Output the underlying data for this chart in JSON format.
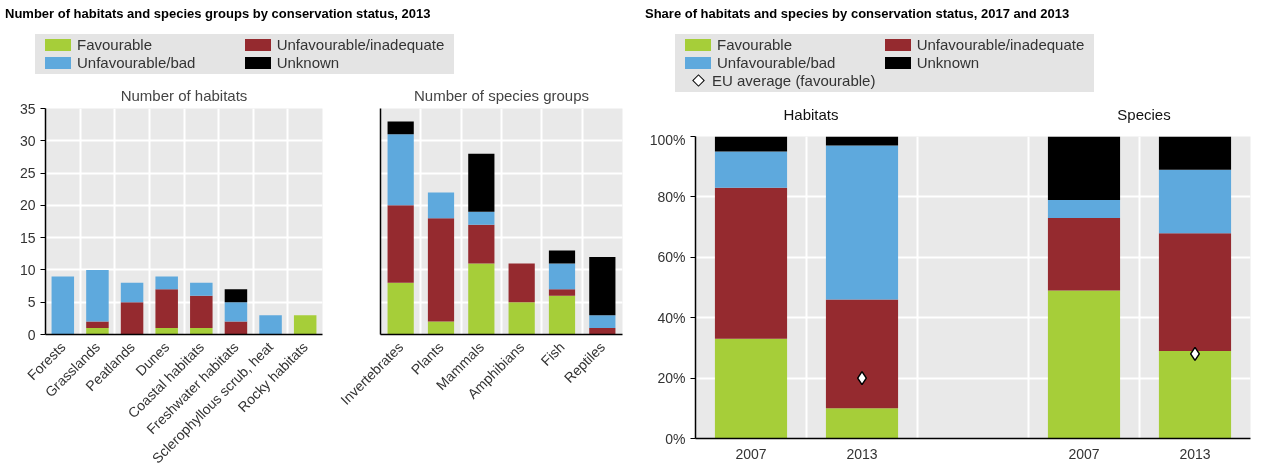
{
  "chart_data": [
    {
      "type": "bar",
      "stacked": true,
      "title": "Number of habitats and species groups by conservation status, 2013",
      "subtitle": "Number of habitats",
      "categories": [
        "Forests",
        "Grasslands",
        "Peatlands",
        "Dunes",
        "Coastal habitats",
        "Freshwater habitats",
        "Sclerophyllous scrub, heat",
        "Rocky habitats"
      ],
      "series": [
        {
          "name": "Favourable",
          "color": "#a6ce39",
          "values": [
            0,
            1,
            0,
            1,
            1,
            0,
            0,
            3
          ]
        },
        {
          "name": "Unfavourable/inadequate",
          "color": "#952a2f",
          "values": [
            0,
            1,
            5,
            6,
            5,
            2,
            0,
            0
          ]
        },
        {
          "name": "Unfavourable/bad",
          "color": "#5ea9dd",
          "values": [
            9,
            8,
            3,
            2,
            2,
            3,
            3,
            0
          ]
        },
        {
          "name": "Unknown",
          "color": "#000000",
          "values": [
            0,
            0,
            0,
            0,
            0,
            2,
            0,
            0
          ]
        }
      ],
      "ylim": [
        0,
        35
      ],
      "yticks": [
        0,
        5,
        10,
        15,
        20,
        25,
        30,
        35
      ],
      "grid": true,
      "legend": "top"
    },
    {
      "type": "bar",
      "stacked": true,
      "subtitle": "Number of species groups",
      "categories": [
        "Invertebrates",
        "Plants",
        "Mammals",
        "Amphibians",
        "Fish",
        "Reptiles"
      ],
      "series": [
        {
          "color": "#a6ce39",
          "values": [
            8,
            2,
            11,
            5,
            6,
            0
          ]
        },
        {
          "color": "#952a2f",
          "values": [
            12,
            16,
            6,
            6,
            1,
            1
          ]
        },
        {
          "color": "#5ea9dd",
          "values": [
            11,
            4,
            2,
            0,
            4,
            2
          ]
        },
        {
          "color": "#000000",
          "values": [
            2,
            0,
            9,
            0,
            2,
            9
          ]
        }
      ],
      "ylim": [
        0,
        35
      ],
      "yticks": [
        0,
        5,
        10,
        15,
        20,
        25,
        30,
        35
      ],
      "tick_labels": "x",
      "grid": true
    },
    {
      "type": "bar",
      "stacked": true,
      "title": "Share of habitats and species by conservation status, 2017 and 2013",
      "categories": [
        "2007",
        "2013",
        null,
        "2007",
        "2013"
      ],
      "series": [
        {
          "name": "Favourable",
          "color": "#a6ce39",
          "values": [
            33,
            10,
            null,
            49,
            29
          ]
        },
        {
          "name": "Unfavourable/inadequate",
          "color": "#952a2f",
          "values": [
            50,
            36,
            null,
            24,
            39
          ]
        },
        {
          "name": "Unfavourable/bad",
          "color": "#5ea9dd",
          "values": [
            12,
            51,
            null,
            6,
            21
          ]
        },
        {
          "name": "Unknown",
          "color": "#000000",
          "values": [
            5,
            3,
            null,
            21,
            11
          ]
        },
        {
          "name": "EU average (favourable)",
          "type": "scatter",
          "marker": "diamond",
          "color": "#ffffff",
          "values": [
            null,
            20,
            null,
            null,
            28
          ]
        }
      ],
      "ylim": [
        0,
        100
      ],
      "yticks": [
        {
          "value": 0,
          "label": "0%"
        },
        {
          "value": 20,
          "label": "20%"
        },
        {
          "value": 40,
          "label": "40%"
        },
        {
          "value": 60,
          "label": "60%"
        },
        {
          "value": 80,
          "label": "80%"
        },
        {
          "value": 100,
          "label": "100%"
        }
      ],
      "annotations": [
        "Habitats",
        "Species"
      ],
      "grid": true,
      "legend": "top"
    }
  ]
}
